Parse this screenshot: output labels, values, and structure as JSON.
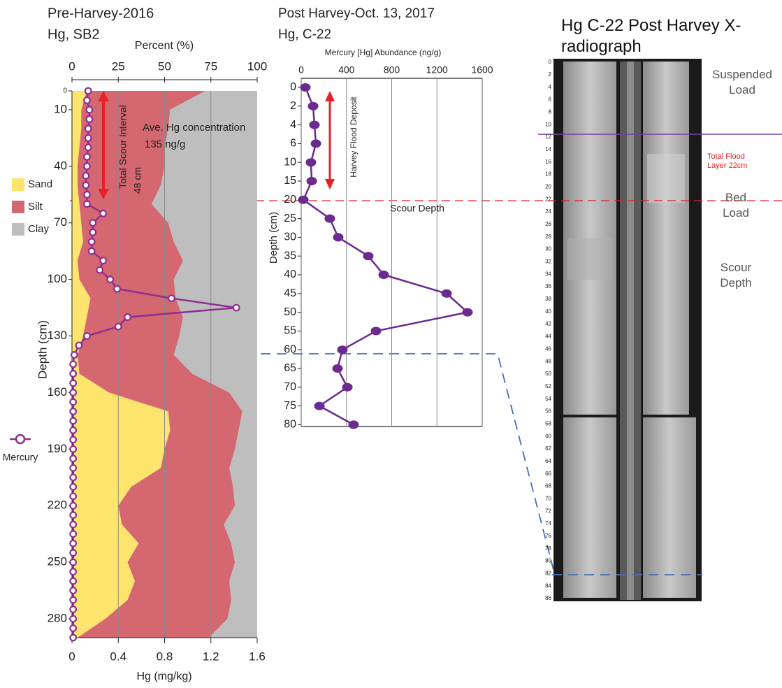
{
  "chart_data": [
    {
      "type": "area",
      "orientation": "horizontal",
      "title": "Pre-Harvey-2016",
      "subtitle": "Hg, SB2",
      "x_label": "Depth (cm)",
      "y_label": "Percent (%)",
      "y2_label": "Hg (mg/kg)",
      "x": [
        0,
        10,
        20,
        30,
        40,
        50,
        60,
        70,
        80,
        90,
        100,
        110,
        120,
        130,
        140,
        150,
        160,
        170,
        180,
        190,
        200,
        210,
        220,
        230,
        240,
        250,
        260,
        270,
        280,
        290
      ],
      "xlim": [
        0,
        290
      ],
      "xticks": [
        0,
        10,
        40,
        70,
        100,
        130,
        160,
        190,
        220,
        250,
        280
      ],
      "ylim": [
        0,
        100
      ],
      "yticks": [
        0,
        25,
        50,
        75,
        100
      ],
      "y2lim": [
        0,
        1.6
      ],
      "y2ticks": [
        0,
        0.4,
        0.8,
        1.2,
        1.6
      ],
      "grid": true,
      "series": [
        {
          "name": "Sand",
          "color": "#fde46c",
          "values": [
            8,
            5,
            5,
            4,
            3,
            3,
            4,
            5,
            6,
            3,
            4,
            10,
            8,
            6,
            3,
            4,
            20,
            52,
            53,
            50,
            48,
            32,
            25,
            27,
            36,
            30,
            34,
            30,
            18,
            3
          ]
        },
        {
          "name": "Silt",
          "color": "#d4676f",
          "values": [
            64,
            48,
            47,
            46,
            47,
            45,
            39,
            47,
            49,
            57,
            51,
            46,
            52,
            52,
            52,
            61,
            65,
            40,
            37,
            38,
            37,
            55,
            63,
            55,
            50,
            58,
            51,
            56,
            66,
            71
          ]
        },
        {
          "name": "Clay",
          "color": "#bebebe",
          "values": [
            28,
            47,
            48,
            50,
            50,
            52,
            57,
            48,
            45,
            40,
            45,
            44,
            40,
            42,
            45,
            35,
            15,
            8,
            10,
            12,
            15,
            13,
            12,
            18,
            14,
            12,
            15,
            14,
            16,
            26
          ]
        },
        {
          "name": "Mercury",
          "color": "#8e2f92",
          "axis": "y2",
          "x": [
            0,
            5,
            10,
            15,
            20,
            25,
            30,
            35,
            40,
            45,
            50,
            55,
            60,
            65,
            70,
            75,
            80,
            85,
            90,
            95,
            100,
            105,
            110,
            115,
            120,
            125,
            130,
            135,
            140,
            145,
            150,
            155,
            160,
            165,
            170,
            175,
            180,
            185,
            190,
            195,
            200,
            205,
            210,
            215,
            220,
            225,
            230,
            235,
            240,
            245,
            250,
            255,
            260,
            265,
            270,
            275,
            280,
            285,
            290
          ],
          "values": [
            0.14,
            0.13,
            0.15,
            0.15,
            0.14,
            0.14,
            0.14,
            0.13,
            0.13,
            0.12,
            0.12,
            0.13,
            0.13,
            0.27,
            0.18,
            0.18,
            0.17,
            0.17,
            0.27,
            0.24,
            0.33,
            0.39,
            0.86,
            1.42,
            0.48,
            0.4,
            0.13,
            0.06,
            0.02,
            0.01,
            0.01,
            0.01,
            0.01,
            0.01,
            0.01,
            0.01,
            0.01,
            0.01,
            0.01,
            0.01,
            0.01,
            0.01,
            0.01,
            0.01,
            0.01,
            0.01,
            0.01,
            0.01,
            0.01,
            0.01,
            0.01,
            0.01,
            0.01,
            0.01,
            0.01,
            0.01,
            0.01,
            0.01,
            0.01
          ]
        }
      ],
      "annotations": [
        "Total Scour Interval",
        "48 cm",
        "Ave. Hg concentration",
        "135 ng/g"
      ]
    },
    {
      "type": "line",
      "orientation": "horizontal",
      "title": "Post Harvey-Oct. 13, 2017",
      "subtitle": "Hg, C-22",
      "x_label": "Depth (cm)",
      "y_label": "Mercury [Hg] Abundance (ng/g)",
      "categories": [
        0,
        2,
        4,
        6,
        10,
        15,
        20,
        25,
        30,
        35,
        40,
        45,
        50,
        55,
        60,
        65,
        70,
        75,
        80
      ],
      "values": [
        37,
        105,
        117,
        130,
        86,
        93,
        19,
        253,
        327,
        593,
        729,
        1285,
        1470,
        661,
        364,
        321,
        408,
        161,
        463
      ],
      "color": "#6a2a90",
      "ylim": [
        0,
        1600
      ],
      "yticks": [
        0,
        400,
        800,
        1200,
        1600
      ],
      "grid": true,
      "annotations": [
        "Harvey Flood Deposit",
        "Scour Depth"
      ]
    }
  ],
  "radiograph": {
    "title": "Hg C-22 Post Harvey X-radiograph",
    "scale": [
      0,
      2,
      4,
      6,
      8,
      10,
      12,
      14,
      16,
      18,
      20,
      22,
      24,
      26,
      28,
      30,
      32,
      34,
      36,
      38,
      40,
      42,
      44,
      46,
      48,
      50,
      52,
      54,
      56,
      58,
      60,
      62,
      64,
      66,
      68,
      70,
      72,
      74,
      76,
      78,
      80,
      82,
      84,
      86
    ],
    "zones": [
      "Suspended Load",
      "Total Flood Layer 22cm",
      "Bed Load",
      "Scour Depth"
    ]
  }
}
